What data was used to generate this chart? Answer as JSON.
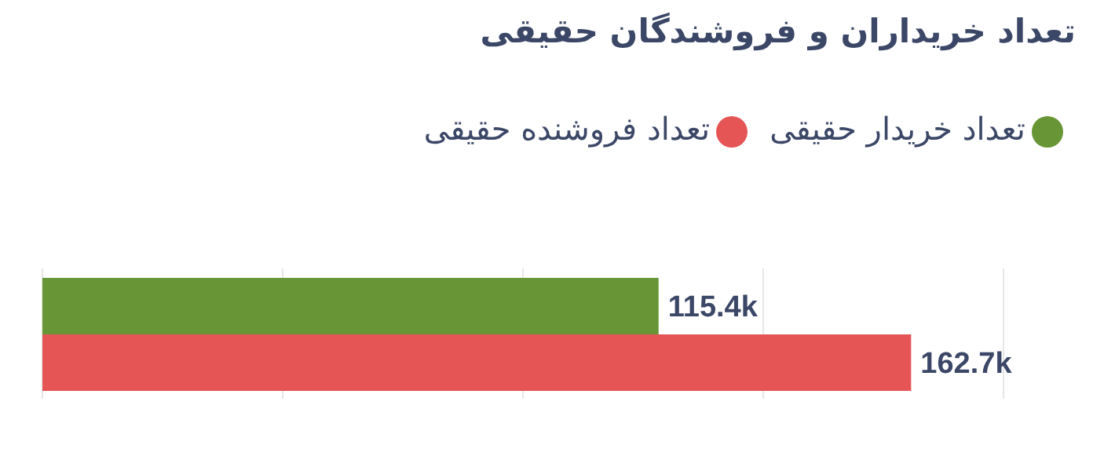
{
  "chart_data": {
    "type": "bar",
    "orientation": "horizontal",
    "title": "تعداد خریداران و فروشندگان حقیقی",
    "categories": [
      null
    ],
    "series": [
      {
        "name": "تعداد خریدار حقیقی",
        "color": "#689636",
        "values": [
          115.4
        ],
        "value_labels": [
          "115.4k"
        ]
      },
      {
        "name": "تعداد فروشنده حقیقی",
        "color": "#e55555",
        "values": [
          162.7
        ],
        "value_labels": [
          "162.7k"
        ]
      }
    ],
    "grid": "x",
    "legend": "top right",
    "data_labels": true
  }
}
